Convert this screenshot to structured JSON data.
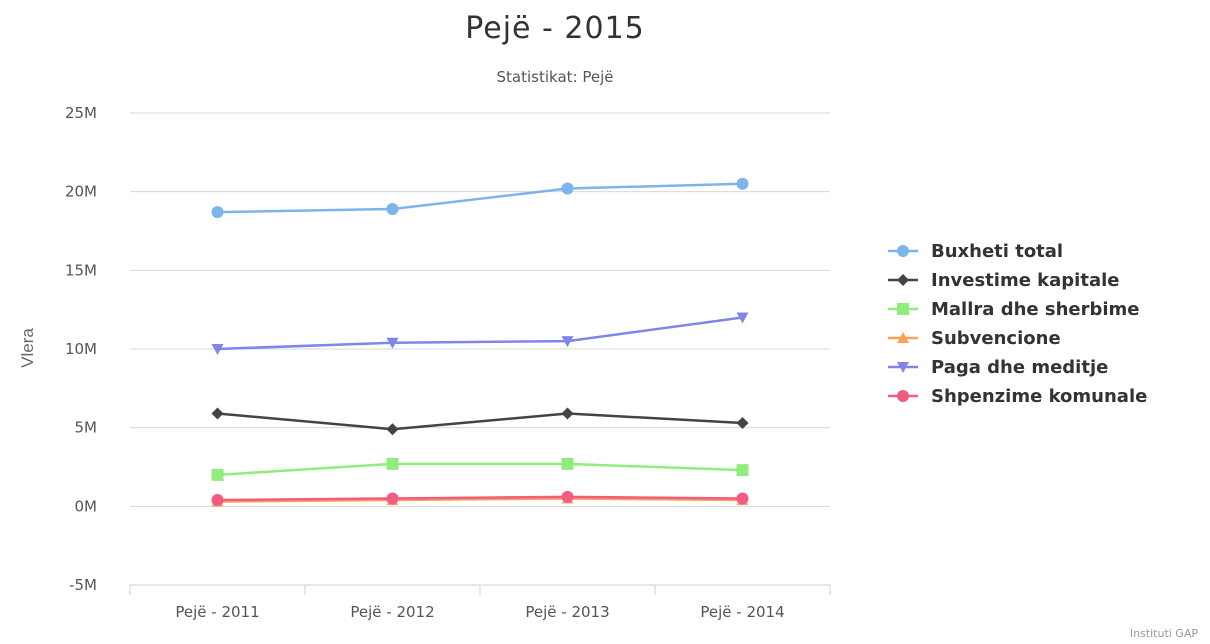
{
  "chart_data": {
    "type": "line",
    "title": "Pejë - 2015",
    "subtitle": "Statistikat: Pejë",
    "ylabel": "Vlera",
    "xlabel": "",
    "categories": [
      "Pejë - 2011",
      "Pejë - 2012",
      "Pejë - 2013",
      "Pejë - 2014"
    ],
    "y_ticks": [
      "-5M",
      "0M",
      "5M",
      "10M",
      "15M",
      "20M",
      "25M"
    ],
    "ylim": [
      -5,
      25
    ],
    "y_unit": "M",
    "grid": true,
    "legend_position": "right",
    "series": [
      {
        "name": "Buxheti total",
        "color": "#7cb5ec",
        "marker": "circle",
        "values": [
          18.7,
          18.9,
          20.2,
          20.5
        ]
      },
      {
        "name": "Investime kapitale",
        "color": "#434348",
        "marker": "diamond",
        "values": [
          5.9,
          4.9,
          5.9,
          5.3
        ]
      },
      {
        "name": "Mallra dhe sherbime",
        "color": "#90ed7d",
        "marker": "square",
        "values": [
          2.0,
          2.7,
          2.7,
          2.3
        ]
      },
      {
        "name": "Subvencione",
        "color": "#f7a35c",
        "marker": "triangle",
        "values": [
          0.3,
          0.4,
          0.5,
          0.4
        ]
      },
      {
        "name": "Paga dhe meditje",
        "color": "#8085e9",
        "marker": "triangle-down",
        "values": [
          10.0,
          10.4,
          10.5,
          12.0
        ]
      },
      {
        "name": "Shpenzime komunale",
        "color": "#f15c80",
        "marker": "circle",
        "values": [
          0.4,
          0.5,
          0.6,
          0.5
        ]
      }
    ],
    "credits": "Instituti GAP"
  }
}
